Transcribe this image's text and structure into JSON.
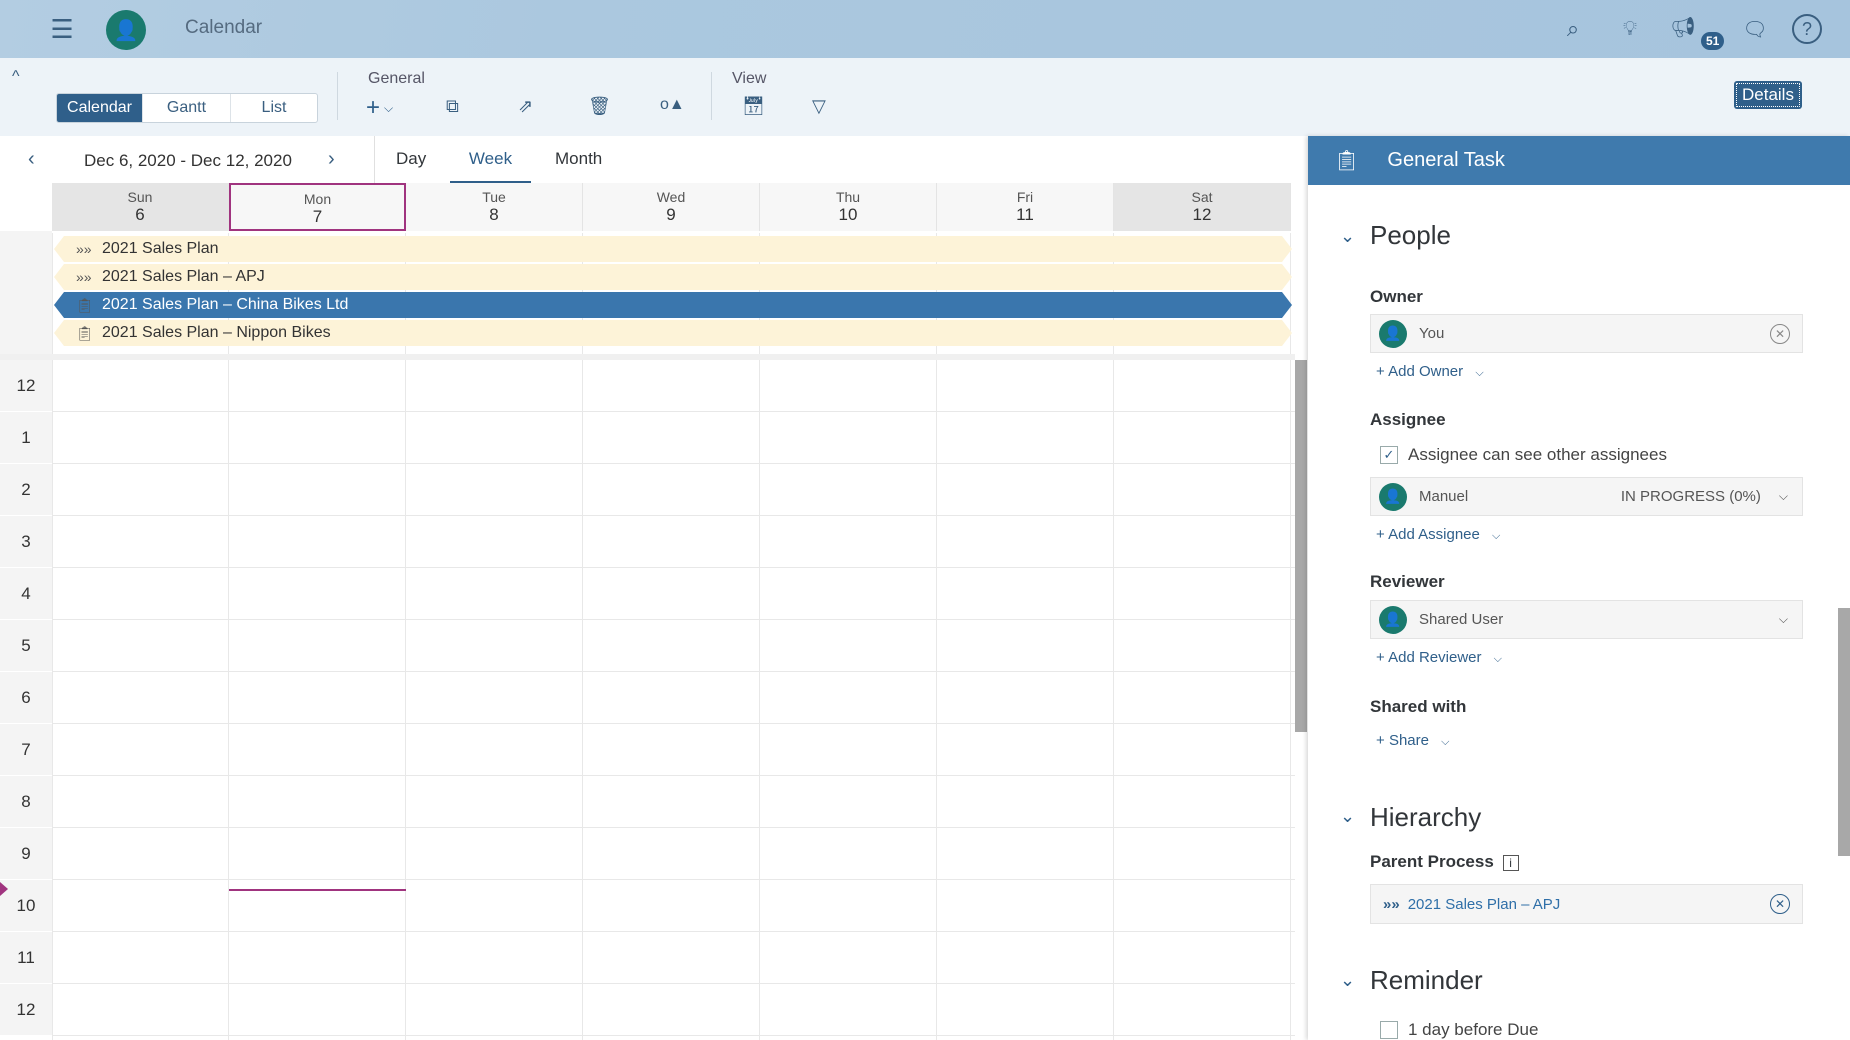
{
  "shell": {
    "title": "Calendar",
    "notification_count": "51",
    "icons": [
      "menu-icon",
      "avatar-icon",
      "search-icon",
      "lightbulb-icon",
      "megaphone-icon",
      "chat-icon",
      "help-icon"
    ]
  },
  "toolbar": {
    "views": [
      "Calendar",
      "Gantt",
      "List"
    ],
    "active_view": "Calendar",
    "general_label": "General",
    "view_label": "View",
    "details_label": "Details"
  },
  "nav": {
    "date_range": "Dec 6, 2020 - Dec 12, 2020",
    "modes": [
      "Day",
      "Week",
      "Month"
    ],
    "active_mode": "Week"
  },
  "days": [
    {
      "name": "Sun",
      "num": "6"
    },
    {
      "name": "Mon",
      "num": "7"
    },
    {
      "name": "Tue",
      "num": "8"
    },
    {
      "name": "Wed",
      "num": "9"
    },
    {
      "name": "Thu",
      "num": "10"
    },
    {
      "name": "Fri",
      "num": "11"
    },
    {
      "name": "Sat",
      "num": "12"
    }
  ],
  "events": [
    {
      "title": "2021 Sales Plan",
      "icon": "process-icon"
    },
    {
      "title": "2021 Sales Plan – APJ",
      "icon": "process-icon"
    },
    {
      "title": "2021 Sales Plan – China Bikes Ltd",
      "icon": "task-icon",
      "selected": true
    },
    {
      "title": "2021 Sales Plan – Nippon Bikes",
      "icon": "task-icon"
    }
  ],
  "hours": [
    "12",
    "1",
    "2",
    "3",
    "4",
    "5",
    "6",
    "7",
    "8",
    "9",
    "10",
    "11",
    "12"
  ],
  "panel": {
    "title": "General Task",
    "people": {
      "title": "People",
      "owner_label": "Owner",
      "owner": "You",
      "add_owner": "Add Owner",
      "assignee_label": "Assignee",
      "assignee_checkbox": "Assignee can see other assignees",
      "assignee": "Manuel",
      "assignee_status": "IN PROGRESS (0%)",
      "add_assignee": "Add Assignee",
      "reviewer_label": "Reviewer",
      "reviewer": "Shared User",
      "add_reviewer": "Add Reviewer",
      "shared_label": "Shared with",
      "share": "Share"
    },
    "hierarchy": {
      "title": "Hierarchy",
      "parent_label": "Parent Process",
      "parent": "2021 Sales Plan – APJ"
    },
    "reminder": {
      "title": "Reminder",
      "option": "1 day before Due"
    }
  },
  "colors": {
    "accent": "#2f5f8a",
    "selected_event": "#3a76ad",
    "event_bg": "#fdf3d8",
    "avatar": "#1a7a6e",
    "today_border": "#a0347f"
  }
}
